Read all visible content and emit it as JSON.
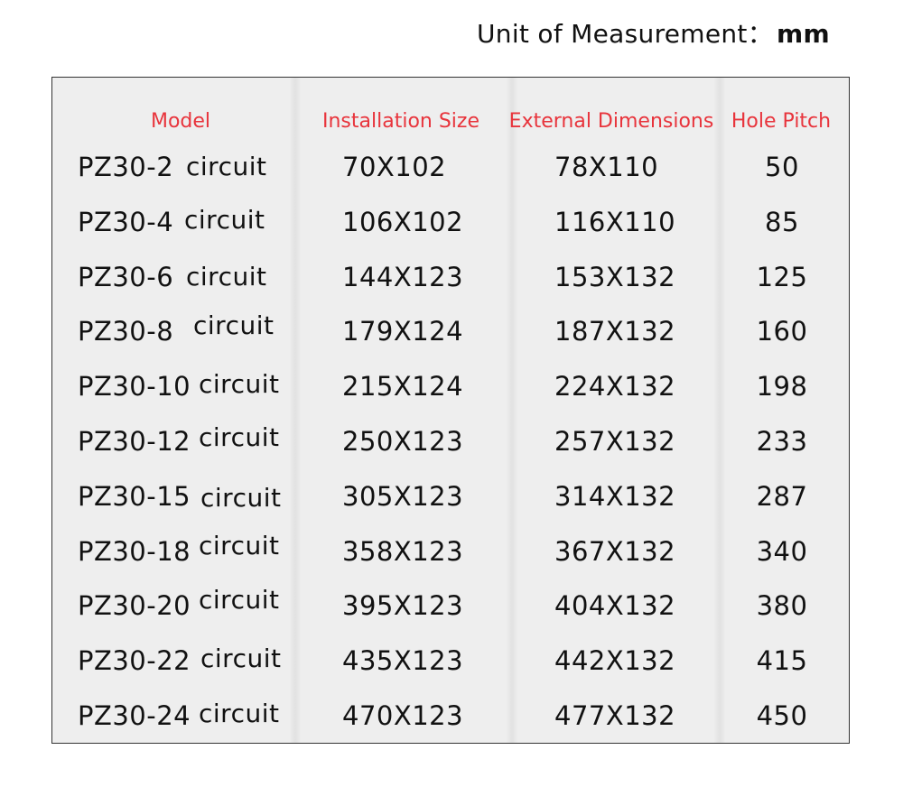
{
  "unit": {
    "label": "Unit of Measurement：",
    "value": "mm"
  },
  "headers": [
    "Model",
    "Installation Size",
    "External Dimensions",
    "Hole Pitch"
  ],
  "colors": {
    "header": "#e8343c",
    "text": "#111111",
    "table_bg": "#eeeeee"
  },
  "rows": [
    {
      "model": "PZ30-2",
      "suffix": "circuit",
      "installation": "70X102",
      "external": "78X110",
      "pitch": "50"
    },
    {
      "model": "PZ30-4",
      "suffix": "circuit",
      "installation": "106X102",
      "external": "116X110",
      "pitch": "85"
    },
    {
      "model": "PZ30-6",
      "suffix": "circuit",
      "installation": "144X123",
      "external": "153X132",
      "pitch": "125"
    },
    {
      "model": "PZ30-8",
      "suffix": "circuit",
      "installation": "179X124",
      "external": "187X132",
      "pitch": "160"
    },
    {
      "model": "PZ30-10",
      "suffix": "circuit",
      "installation": "215X124",
      "external": "224X132",
      "pitch": "198"
    },
    {
      "model": "PZ30-12",
      "suffix": "circuit",
      "installation": "250X123",
      "external": "257X132",
      "pitch": "233"
    },
    {
      "model": "PZ30-15",
      "suffix": "circuit",
      "installation": "305X123",
      "external": "314X132",
      "pitch": "287"
    },
    {
      "model": "PZ30-18",
      "suffix": "circuit",
      "installation": "358X123",
      "external": "367X132",
      "pitch": "340"
    },
    {
      "model": "PZ30-20",
      "suffix": "circuit",
      "installation": "395X123",
      "external": "404X132",
      "pitch": "380"
    },
    {
      "model": "PZ30-22",
      "suffix": "circuit",
      "installation": "435X123",
      "external": "442X132",
      "pitch": "415"
    },
    {
      "model": "PZ30-24",
      "suffix": "circuit",
      "installation": "470X123",
      "external": "477X132",
      "pitch": "450"
    }
  ]
}
